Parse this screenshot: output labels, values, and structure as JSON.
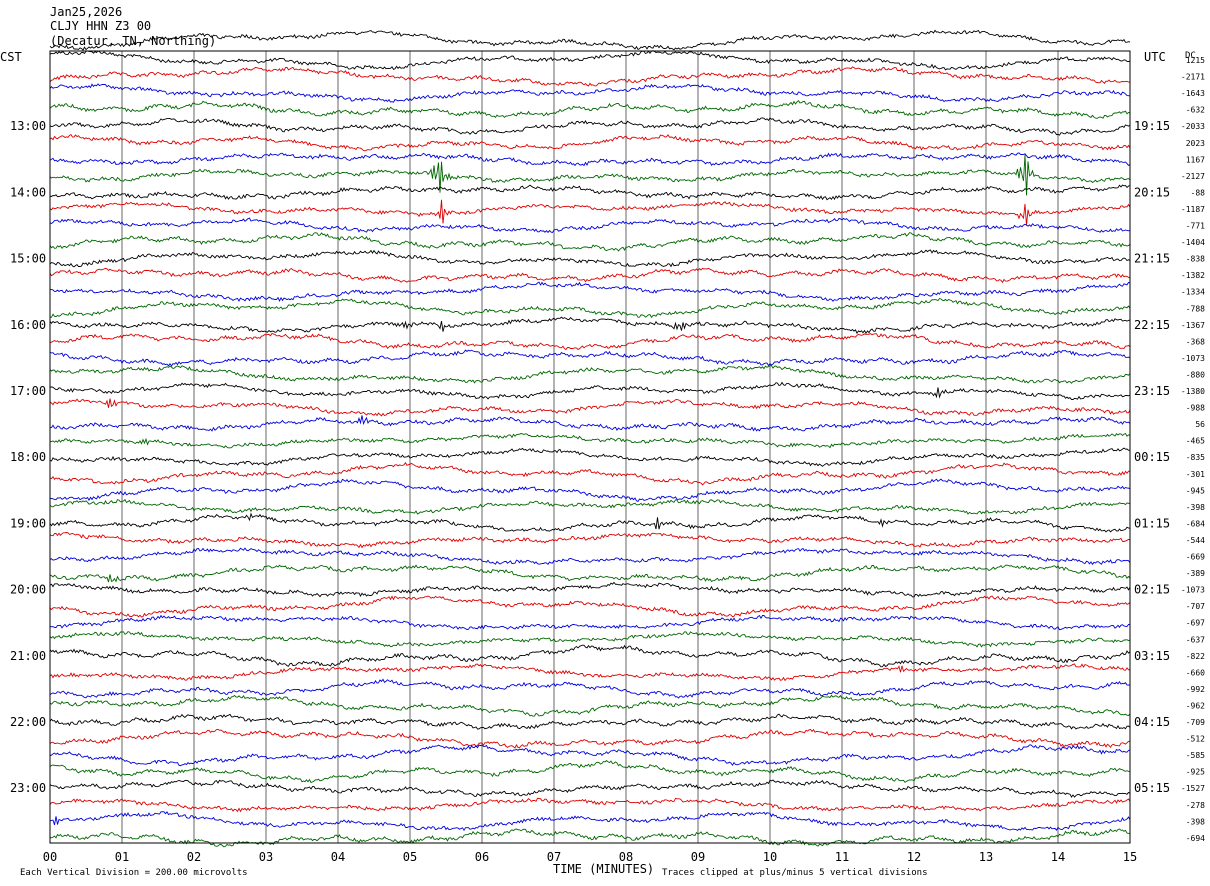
{
  "header": {
    "date": "Jan25,2026",
    "station": "CLJY HHN Z3 00",
    "location": "(Decatur, TN, Northing)"
  },
  "labels": {
    "left_zone": "CST",
    "right_zone": "UTC",
    "dc_label": "DC",
    "xlabel": "TIME (MINUTES)",
    "scale_note": "Each Vertical Division =  200.00 microvolts",
    "clip_note": "Traces clipped at plus/minus 5 vertical divisions"
  },
  "colors": {
    "cycle": [
      "#000000",
      "#dd0000",
      "#0000dd",
      "#006600"
    ],
    "grid": "#000000",
    "text": "#000000"
  },
  "chart_data": {
    "type": "line",
    "title": "CLJY HHN Z3 00",
    "x_ticks": [
      "00",
      "01",
      "02",
      "03",
      "04",
      "05",
      "06",
      "07",
      "08",
      "09",
      "10",
      "11",
      "12",
      "13",
      "14",
      "15"
    ],
    "xlim": [
      0,
      15
    ],
    "left_hour_labels": [
      "13:00",
      "14:00",
      "15:00",
      "16:00",
      "17:00",
      "18:00",
      "19:00",
      "20:00",
      "21:00",
      "22:00",
      "23:00"
    ],
    "right_hour_labels": [
      "19:15",
      "20:15",
      "21:15",
      "22:15",
      "23:15",
      "00:15",
      "01:15",
      "02:15",
      "03:15",
      "04:15",
      "05:15"
    ],
    "dc_offsets": [
      "1215",
      "-2171",
      "-1643",
      "-632",
      "-2033",
      "2023",
      "1167",
      "-2127",
      "-88",
      "-1187",
      "-771",
      "-1404",
      "-838",
      "-1382",
      "-1334",
      "-788",
      "-1367",
      "-368",
      "-1073",
      "-880",
      "-1380",
      "-988",
      "56",
      "-465",
      "-835",
      "-301",
      "-945",
      "-398",
      "-684",
      "-544",
      "-669",
      "-389",
      "-1073",
      "-707",
      "-697",
      "-637",
      "-822",
      "-660",
      "-992",
      "-962",
      "-709",
      "-512",
      "-585",
      "-925",
      "-1527",
      "-278",
      "-398",
      "-694"
    ],
    "trace_count": 48,
    "trace_color_cycle": [
      "black",
      "red",
      "blue",
      "green"
    ],
    "events": [
      {
        "trace": 7,
        "minute": 5.4,
        "amp": 28
      },
      {
        "trace": 9,
        "minute": 5.45,
        "amp": 16
      },
      {
        "trace": 7,
        "minute": 13.55,
        "amp": 28
      },
      {
        "trace": 9,
        "minute": 13.55,
        "amp": 14
      },
      {
        "trace": 16,
        "minute": 5.45,
        "amp": 7
      },
      {
        "trace": 16,
        "minute": 8.75,
        "amp": 8
      },
      {
        "trace": 16,
        "minute": 4.9,
        "amp": 5
      },
      {
        "trace": 20,
        "minute": 12.35,
        "amp": 8
      },
      {
        "trace": 21,
        "minute": 0.85,
        "amp": 9
      },
      {
        "trace": 22,
        "minute": 4.35,
        "amp": 7
      },
      {
        "trace": 23,
        "minute": 1.35,
        "amp": 6
      },
      {
        "trace": 28,
        "minute": 8.45,
        "amp": 8
      },
      {
        "trace": 28,
        "minute": 2.75,
        "amp": 5
      },
      {
        "trace": 28,
        "minute": 11.55,
        "amp": 6
      },
      {
        "trace": 31,
        "minute": 0.85,
        "amp": 8
      },
      {
        "trace": 37,
        "minute": 11.85,
        "amp": 6
      },
      {
        "trace": 46,
        "minute": 0.1,
        "amp": 7
      }
    ]
  }
}
